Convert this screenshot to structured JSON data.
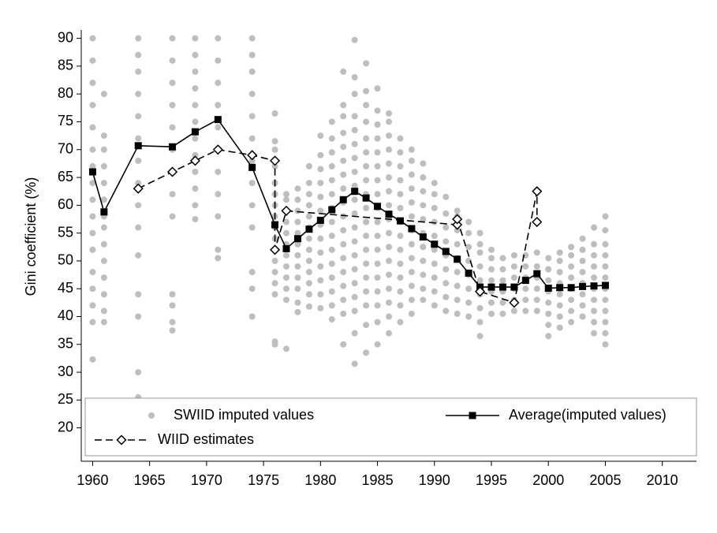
{
  "chart_data": {
    "type": "scatter",
    "y_label": "Gini coefficient (%)",
    "xlim": [
      1959,
      2013
    ],
    "ylim": [
      14,
      91.5
    ],
    "xticks": [
      1960,
      1965,
      1970,
      1975,
      1980,
      1985,
      1990,
      1995,
      2000,
      2005,
      2010
    ],
    "yticks": [
      20,
      25,
      30,
      35,
      40,
      45,
      50,
      55,
      60,
      65,
      70,
      75,
      80,
      85,
      90
    ],
    "grid": false,
    "legend": "bottom",
    "series": [
      {
        "name": "SWIID imputed values",
        "type": "scatter",
        "color": "#bebebe",
        "points": [
          {
            "x": 1960,
            "values": [
              32.3,
              39,
              42,
              45,
              48,
              52,
              55,
              58,
              61,
              64,
              67,
              70,
              74,
              78,
              82,
              86,
              90
            ]
          },
          {
            "x": 1961,
            "values": [
              39,
              41,
              44,
              47,
              50,
              53,
              56,
              58,
              61,
              64,
              67,
              70,
              72.5,
              80
            ]
          },
          {
            "x": 1964,
            "values": [
              25.5,
              30,
              40,
              44,
              51,
              56,
              60,
              64,
              68,
              72,
              76,
              80,
              84,
              87,
              90
            ]
          },
          {
            "x": 1967,
            "values": [
              37.5,
              39,
              42,
              44,
              58,
              62,
              66,
              70,
              74,
              78,
              82,
              86,
              90
            ]
          },
          {
            "x": 1969,
            "values": [
              57.5,
              60,
              63,
              66,
              69,
              72,
              75,
              78,
              81,
              84,
              87,
              90
            ]
          },
          {
            "x": 1971,
            "values": [
              50.5,
              52,
              58,
              62,
              66,
              70,
              74,
              78,
              82,
              86,
              90
            ]
          },
          {
            "x": 1974,
            "values": [
              40,
              45,
              48,
              56,
              60,
              64,
              68,
              72,
              76,
              80,
              84,
              87,
              90
            ]
          },
          {
            "x": 1976,
            "values": [
              35,
              35.5,
              44,
              46,
              48,
              50,
              52,
              54,
              56,
              58,
              60,
              62,
              64,
              67,
              70,
              71.5,
              76.5
            ]
          },
          {
            "x": 1977,
            "values": [
              34.2,
              43,
              45,
              47,
              49,
              51,
              53,
              55,
              57,
              59,
              61,
              62
            ]
          },
          {
            "x": 1978,
            "values": [
              40.8,
              42.5,
              45,
              47,
              49,
              51,
              53,
              55,
              57,
              59,
              61,
              63
            ]
          },
          {
            "x": 1979,
            "values": [
              41.8,
              44,
              46,
              48,
              50,
              52,
              54,
              56,
              58,
              60,
              62,
              64,
              67
            ]
          },
          {
            "x": 1980,
            "values": [
              41.5,
              44,
              46.5,
              49,
              51.5,
              54,
              56.5,
              59,
              61.5,
              64,
              66.5,
              69,
              72.5
            ]
          },
          {
            "x": 1981,
            "values": [
              39.5,
              42,
              44.5,
              47,
              49.5,
              52,
              54.5,
              57,
              59.5,
              62,
              64.5,
              67,
              69.5,
              72,
              75
            ]
          },
          {
            "x": 1982,
            "values": [
              35,
              40.5,
              43,
              45.5,
              48,
              50.5,
              53,
              55.5,
              58,
              60.5,
              63,
              65.5,
              68,
              70.5,
              73,
              76,
              78,
              84
            ]
          },
          {
            "x": 1983,
            "values": [
              31.5,
              37,
              41,
              43.5,
              46,
              48.5,
              51,
              53.5,
              56,
              58.5,
              61,
              63.5,
              66,
              68.5,
              71,
              73.5,
              76,
              80,
              83,
              89.7
            ]
          },
          {
            "x": 1984,
            "values": [
              33.5,
              38.5,
              42,
              44.5,
              47,
              49.5,
              52,
              54.5,
              57,
              59.5,
              62,
              64.5,
              67,
              69.5,
              72,
              75,
              78,
              80.5,
              85.5
            ]
          },
          {
            "x": 1985,
            "values": [
              35,
              39,
              42,
              44.5,
              47,
              49.5,
              52,
              54.5,
              57,
              59.5,
              62,
              64.5,
              67,
              69.5,
              72,
              74.5,
              77,
              81
            ]
          },
          {
            "x": 1986,
            "values": [
              37,
              40,
              42.5,
              45,
              47.5,
              50,
              52.5,
              55,
              57.5,
              60,
              62.5,
              65,
              67.5,
              70,
              72.5,
              75,
              76.5
            ]
          },
          {
            "x": 1987,
            "values": [
              39,
              42,
              44.5,
              47,
              49.5,
              52,
              54.5,
              57,
              59.5,
              62,
              64.5,
              67,
              69.5,
              72
            ]
          },
          {
            "x": 1988,
            "values": [
              40.5,
              43,
              45.5,
              48,
              50.5,
              53,
              55.5,
              58,
              60.5,
              63,
              65.5,
              68,
              70
            ]
          },
          {
            "x": 1989,
            "values": [
              43,
              45,
              47.5,
              50,
              52.5,
              55,
              57.5,
              60,
              62.5,
              65,
              67.5
            ]
          },
          {
            "x": 1990,
            "values": [
              42,
              44.5,
              47,
              49.5,
              52,
              54.5,
              57,
              59.5,
              62,
              64
            ]
          },
          {
            "x": 1991,
            "values": [
              41,
              43.5,
              46,
              48.5,
              51,
              53.5,
              56,
              58.5,
              61.5
            ]
          },
          {
            "x": 1992,
            "values": [
              40.5,
              43,
              45.5,
              48,
              50.5,
              53,
              55.5,
              58,
              59
            ]
          },
          {
            "x": 1993,
            "values": [
              40,
              42.5,
              45,
              47.5,
              50,
              52.5,
              55,
              57
            ]
          },
          {
            "x": 1994,
            "values": [
              36.5,
              39,
              41.5,
              44,
              46.5,
              49,
              51.5,
              53,
              55
            ]
          },
          {
            "x": 1995,
            "values": [
              40.5,
              42.5,
              44.5,
              46.5,
              48.5,
              50.5,
              52
            ]
          },
          {
            "x": 1996,
            "values": [
              40.5,
              42.5,
              44.5,
              46.5,
              48.5,
              50.5
            ]
          },
          {
            "x": 1997,
            "values": [
              41,
              43,
              45,
              47,
              49,
              51
            ]
          },
          {
            "x": 1998,
            "values": [
              41,
              43,
              45,
              47,
              49,
              51
            ]
          },
          {
            "x": 1999,
            "values": [
              41,
              43,
              45,
              47,
              49,
              51.5
            ]
          },
          {
            "x": 2000,
            "values": [
              36.5,
              38.5,
              40.5,
              42.5,
              44.5,
              46.5,
              48.5,
              50.5
            ]
          },
          {
            "x": 2001,
            "values": [
              38,
              40,
              42,
              44,
              46,
              48,
              50,
              51.5
            ]
          },
          {
            "x": 2002,
            "values": [
              39,
              41,
              43,
              45,
              47,
              49,
              51,
              52.5
            ]
          },
          {
            "x": 2003,
            "values": [
              40,
              42,
              44,
              46,
              48,
              50,
              52,
              54
            ]
          },
          {
            "x": 2004,
            "values": [
              37,
              39,
              41,
              43,
              45,
              47,
              49,
              51,
              53,
              56
            ]
          },
          {
            "x": 2005,
            "values": [
              35,
              37,
              39,
              41,
              43,
              45,
              47,
              49,
              51,
              53,
              55.5,
              58
            ]
          }
        ]
      },
      {
        "name": "Average(imputed values)",
        "type": "line",
        "color": "#000000",
        "marker": "square",
        "dash": false,
        "x": [
          1960,
          1961,
          1964,
          1967,
          1969,
          1971,
          1974,
          1976,
          1977,
          1978,
          1979,
          1980,
          1981,
          1982,
          1983,
          1984,
          1985,
          1986,
          1987,
          1988,
          1989,
          1990,
          1991,
          1992,
          1993,
          1994,
          1995,
          1996,
          1997,
          1998,
          1999,
          2000,
          2001,
          2002,
          2003,
          2004,
          2005
        ],
        "values": [
          66,
          58.8,
          70.7,
          70.5,
          73.2,
          75.4,
          66.8,
          56.5,
          52.2,
          54,
          55.7,
          57.3,
          59.2,
          61,
          62.5,
          61.3,
          59.8,
          58.4,
          57.2,
          55.8,
          54.3,
          53,
          51.7,
          50.3,
          47.8,
          45.3,
          45.3,
          45.3,
          45.3,
          46.5,
          47.7,
          45.1,
          45.2,
          45.2,
          45.4,
          45.5,
          45.6
        ]
      },
      {
        "name": "WIID estimates",
        "type": "line",
        "color": "#000000",
        "marker": "diamond",
        "dash": true,
        "x": [
          1964,
          1967,
          1969,
          1971,
          1974,
          1976,
          1976,
          1977,
          1992,
          1992,
          1994,
          1997,
          1999,
          1999
        ],
        "values": [
          63,
          66,
          68,
          70,
          69,
          68,
          52,
          59,
          56.5,
          57.5,
          44.5,
          42.5,
          62.5,
          57
        ]
      }
    ]
  }
}
